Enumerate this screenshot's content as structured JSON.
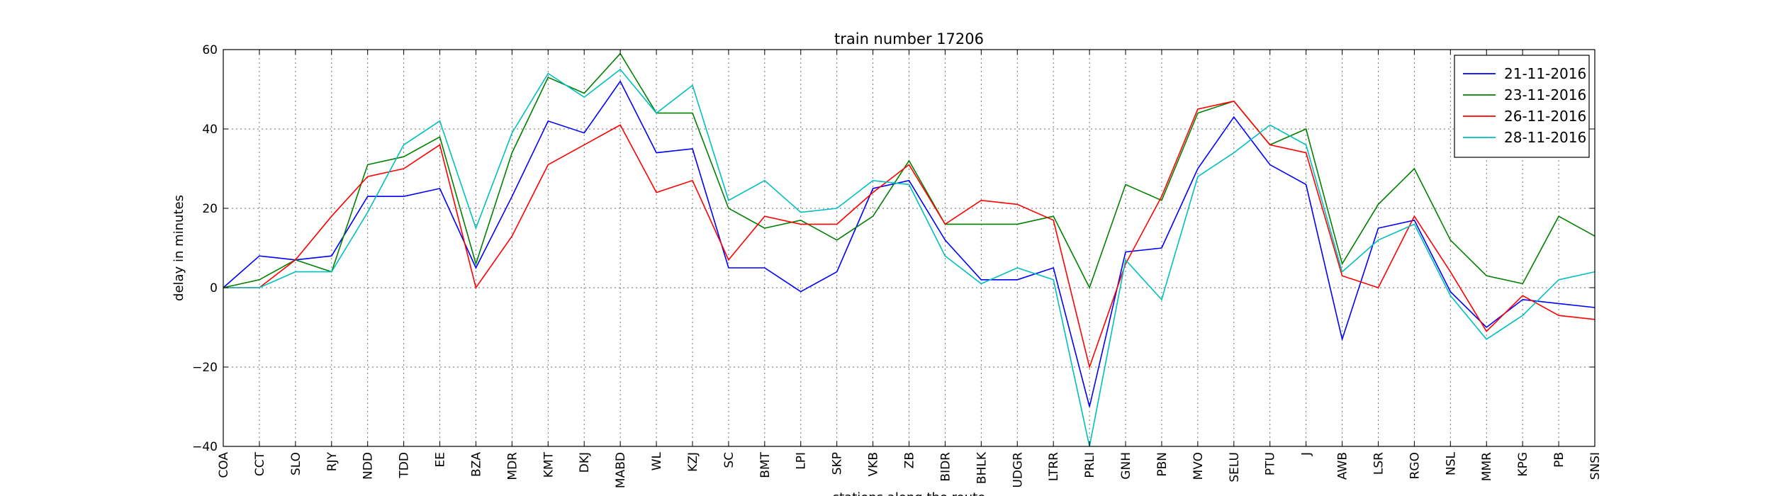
{
  "chart_data": {
    "type": "line",
    "title": "train number 17206",
    "xlabel": "stations along the route",
    "ylabel": "delay in minutes",
    "ylim": [
      -40,
      60
    ],
    "yticks": [
      -40,
      -20,
      0,
      20,
      40,
      60
    ],
    "grid": true,
    "legend_position": "top-right",
    "categories": [
      "COA",
      "CCT",
      "SLO",
      "RJY",
      "NDD",
      "TDD",
      "EE",
      "BZA",
      "MDR",
      "KMT",
      "DKJ",
      "MABD",
      "WL",
      "KZJ",
      "SC",
      "BMT",
      "LPI",
      "SKP",
      "VKB",
      "ZB",
      "BIDR",
      "BHLK",
      "UDGR",
      "LTRR",
      "PRLI",
      "GNH",
      "PBN",
      "MVO",
      "SELU",
      "PTU",
      "J",
      "AWB",
      "LSR",
      "RGO",
      "NSL",
      "MMR",
      "KPG",
      "PB",
      "SNSI"
    ],
    "series": [
      {
        "name": "21-11-2016",
        "color": "#0000ff",
        "values": [
          0,
          8,
          7,
          8,
          23,
          23,
          25,
          5,
          23,
          42,
          39,
          52,
          34,
          35,
          5,
          5,
          -1,
          4,
          25,
          27,
          12,
          2,
          2,
          5,
          -30,
          9,
          10,
          30,
          43,
          31,
          26,
          -13,
          15,
          17,
          -1,
          -10,
          -3,
          -4,
          -5
        ]
      },
      {
        "name": "23-11-2016",
        "color": "#008000",
        "values": [
          0,
          2,
          7,
          4,
          31,
          33,
          38,
          6,
          34,
          53,
          49,
          59,
          44,
          44,
          20,
          15,
          17,
          12,
          18,
          32,
          16,
          16,
          16,
          18,
          0,
          26,
          22,
          44,
          47,
          36,
          40,
          6,
          21,
          30,
          12,
          3,
          1,
          18,
          13
        ]
      },
      {
        "name": "26-11-2016",
        "color": "#ff0000",
        "values": [
          0,
          0,
          7,
          18,
          28,
          30,
          36,
          0,
          13,
          31,
          36,
          41,
          24,
          27,
          7,
          18,
          16,
          16,
          24,
          31,
          16,
          22,
          21,
          17,
          -20,
          6,
          23,
          45,
          47,
          36,
          34,
          3,
          0,
          18,
          4,
          -11,
          -2,
          -7,
          -8
        ]
      },
      {
        "name": "28-11-2016",
        "color": "#00bfbf",
        "values": [
          0,
          0,
          4,
          4,
          19,
          36,
          42,
          15,
          39,
          54,
          48,
          55,
          44,
          51,
          22,
          27,
          19,
          20,
          27,
          26,
          8,
          1,
          5,
          2,
          -40,
          7,
          -3,
          28,
          34,
          41,
          36,
          4,
          12,
          16,
          -2,
          -13,
          -7,
          2,
          4
        ]
      }
    ]
  }
}
